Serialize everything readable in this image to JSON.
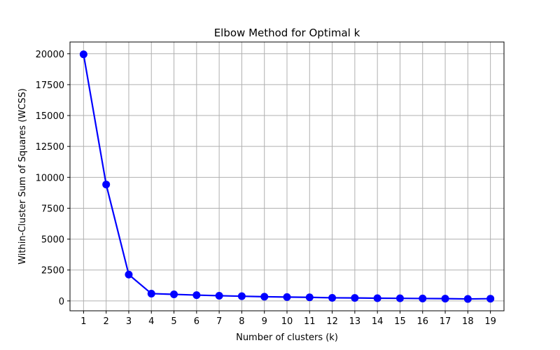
{
  "chart_data": {
    "type": "line",
    "title": "Elbow Method for Optimal k",
    "xlabel": "Number of clusters (k)",
    "ylabel": "Within-Cluster Sum of Squares (WCSS)",
    "x": [
      1,
      2,
      3,
      4,
      5,
      6,
      7,
      8,
      9,
      10,
      11,
      12,
      13,
      14,
      15,
      16,
      17,
      18,
      19
    ],
    "series": [
      {
        "values": [
          19950,
          9420,
          2130,
          590,
          530,
          470,
          420,
          380,
          340,
          310,
          290,
          250,
          240,
          220,
          210,
          195,
          185,
          160,
          180
        ],
        "color": "#0000ff"
      }
    ],
    "xlim": [
      0.4,
      19.6
    ],
    "ylim": [
      -800,
      20950
    ],
    "yticks": [
      0,
      2500,
      5000,
      7500,
      10000,
      12500,
      15000,
      17500,
      20000
    ],
    "xticks": [
      1,
      2,
      3,
      4,
      5,
      6,
      7,
      8,
      9,
      10,
      11,
      12,
      13,
      14,
      15,
      16,
      17,
      18,
      19
    ],
    "grid": true,
    "marker": "circle",
    "legend": "none"
  }
}
